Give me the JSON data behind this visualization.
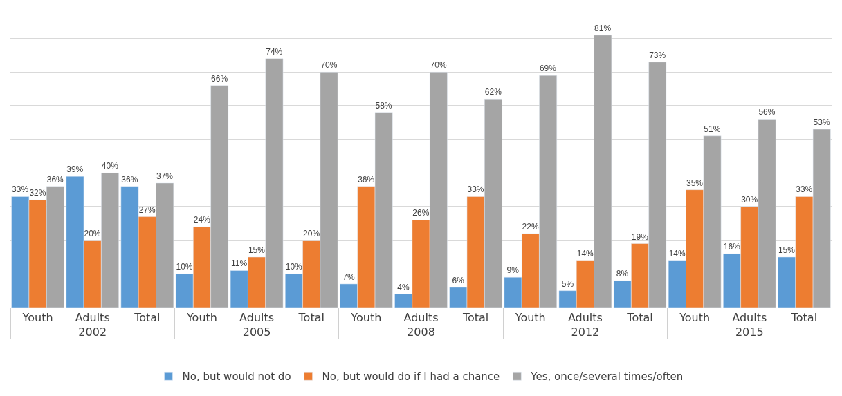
{
  "chart_data": {
    "type": "bar",
    "categories": [
      "Youth",
      "Adults",
      "Total",
      "Youth",
      "Adults",
      "Total",
      "Youth",
      "Adults",
      "Total",
      "Youth",
      "Adults",
      "Total",
      "Youth",
      "Adults",
      "Total"
    ],
    "annotations": [
      "2002",
      "2005",
      "2008",
      "2012",
      "2015"
    ],
    "relative": false,
    "series": [
      {
        "name": "No, but would not do",
        "color": "#5b9bd5",
        "values": [
          33,
          39,
          36,
          10,
          11,
          10,
          7,
          4,
          6,
          9,
          5,
          8,
          14,
          16,
          15
        ],
        "value_labels": [
          "33%",
          "39%",
          "36%",
          "10%",
          "11%",
          "10%",
          "7%",
          "4%",
          "6%",
          "9%",
          "5%",
          "8%",
          "14%",
          "16%",
          "15%"
        ]
      },
      {
        "name": "No, but would do if I had a chance",
        "color": "#ed7d31",
        "values": [
          32,
          20,
          27,
          24,
          15,
          20,
          36,
          26,
          33,
          22,
          14,
          19,
          35,
          30,
          33
        ],
        "value_labels": [
          "32%",
          "20%",
          "27%",
          "24%",
          "15%",
          "20%",
          "36%",
          "26%",
          "33%",
          "22%",
          "14%",
          "19%",
          "35%",
          "30%",
          "33%"
        ]
      },
      {
        "name": "Yes, once/several times/often",
        "color": "#a5a5a5",
        "values": [
          36,
          40,
          37,
          66,
          74,
          70,
          58,
          70,
          62,
          69,
          81,
          73,
          51,
          56,
          53
        ],
        "value_labels": [
          "36%",
          "40%",
          "37%",
          "66%",
          "74%",
          "70%",
          "58%",
          "70%",
          "62%",
          "69%",
          "81%",
          "73%",
          "51%",
          "56%",
          "53%"
        ]
      }
    ],
    "grid": "y",
    "legend": "bottom",
    "tick_labels": "x"
  }
}
